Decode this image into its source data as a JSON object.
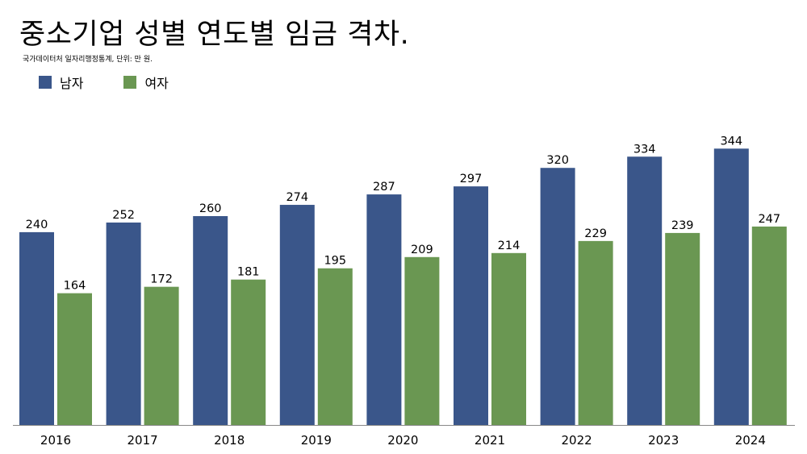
{
  "header": {
    "title": "중소기업 성별 연도별 임금 격차.",
    "subtitle": "국가데이터처 일자리행정통계, 단위: 만 원."
  },
  "colors": {
    "male": "#3a568a",
    "female": "#6a9752",
    "axis": "#888888"
  },
  "chart_data": {
    "type": "bar",
    "title": "중소기업 성별 연도별 임금 격차.",
    "subtitle": "국가데이터처 일자리행정통계, 단위: 만 원.",
    "categories": [
      "2016",
      "2017",
      "2018",
      "2019",
      "2020",
      "2021",
      "2022",
      "2023",
      "2024"
    ],
    "series": [
      {
        "name": "남자",
        "values": [
          240,
          252,
          260,
          274,
          287,
          297,
          320,
          334,
          344
        ]
      },
      {
        "name": "여자",
        "values": [
          164,
          172,
          181,
          195,
          209,
          214,
          229,
          239,
          247
        ]
      }
    ],
    "xlabel": "",
    "ylabel": "",
    "ylim": [
      0,
      529
    ],
    "grid": false,
    "legend_position": "top-left",
    "data_labels": true
  }
}
